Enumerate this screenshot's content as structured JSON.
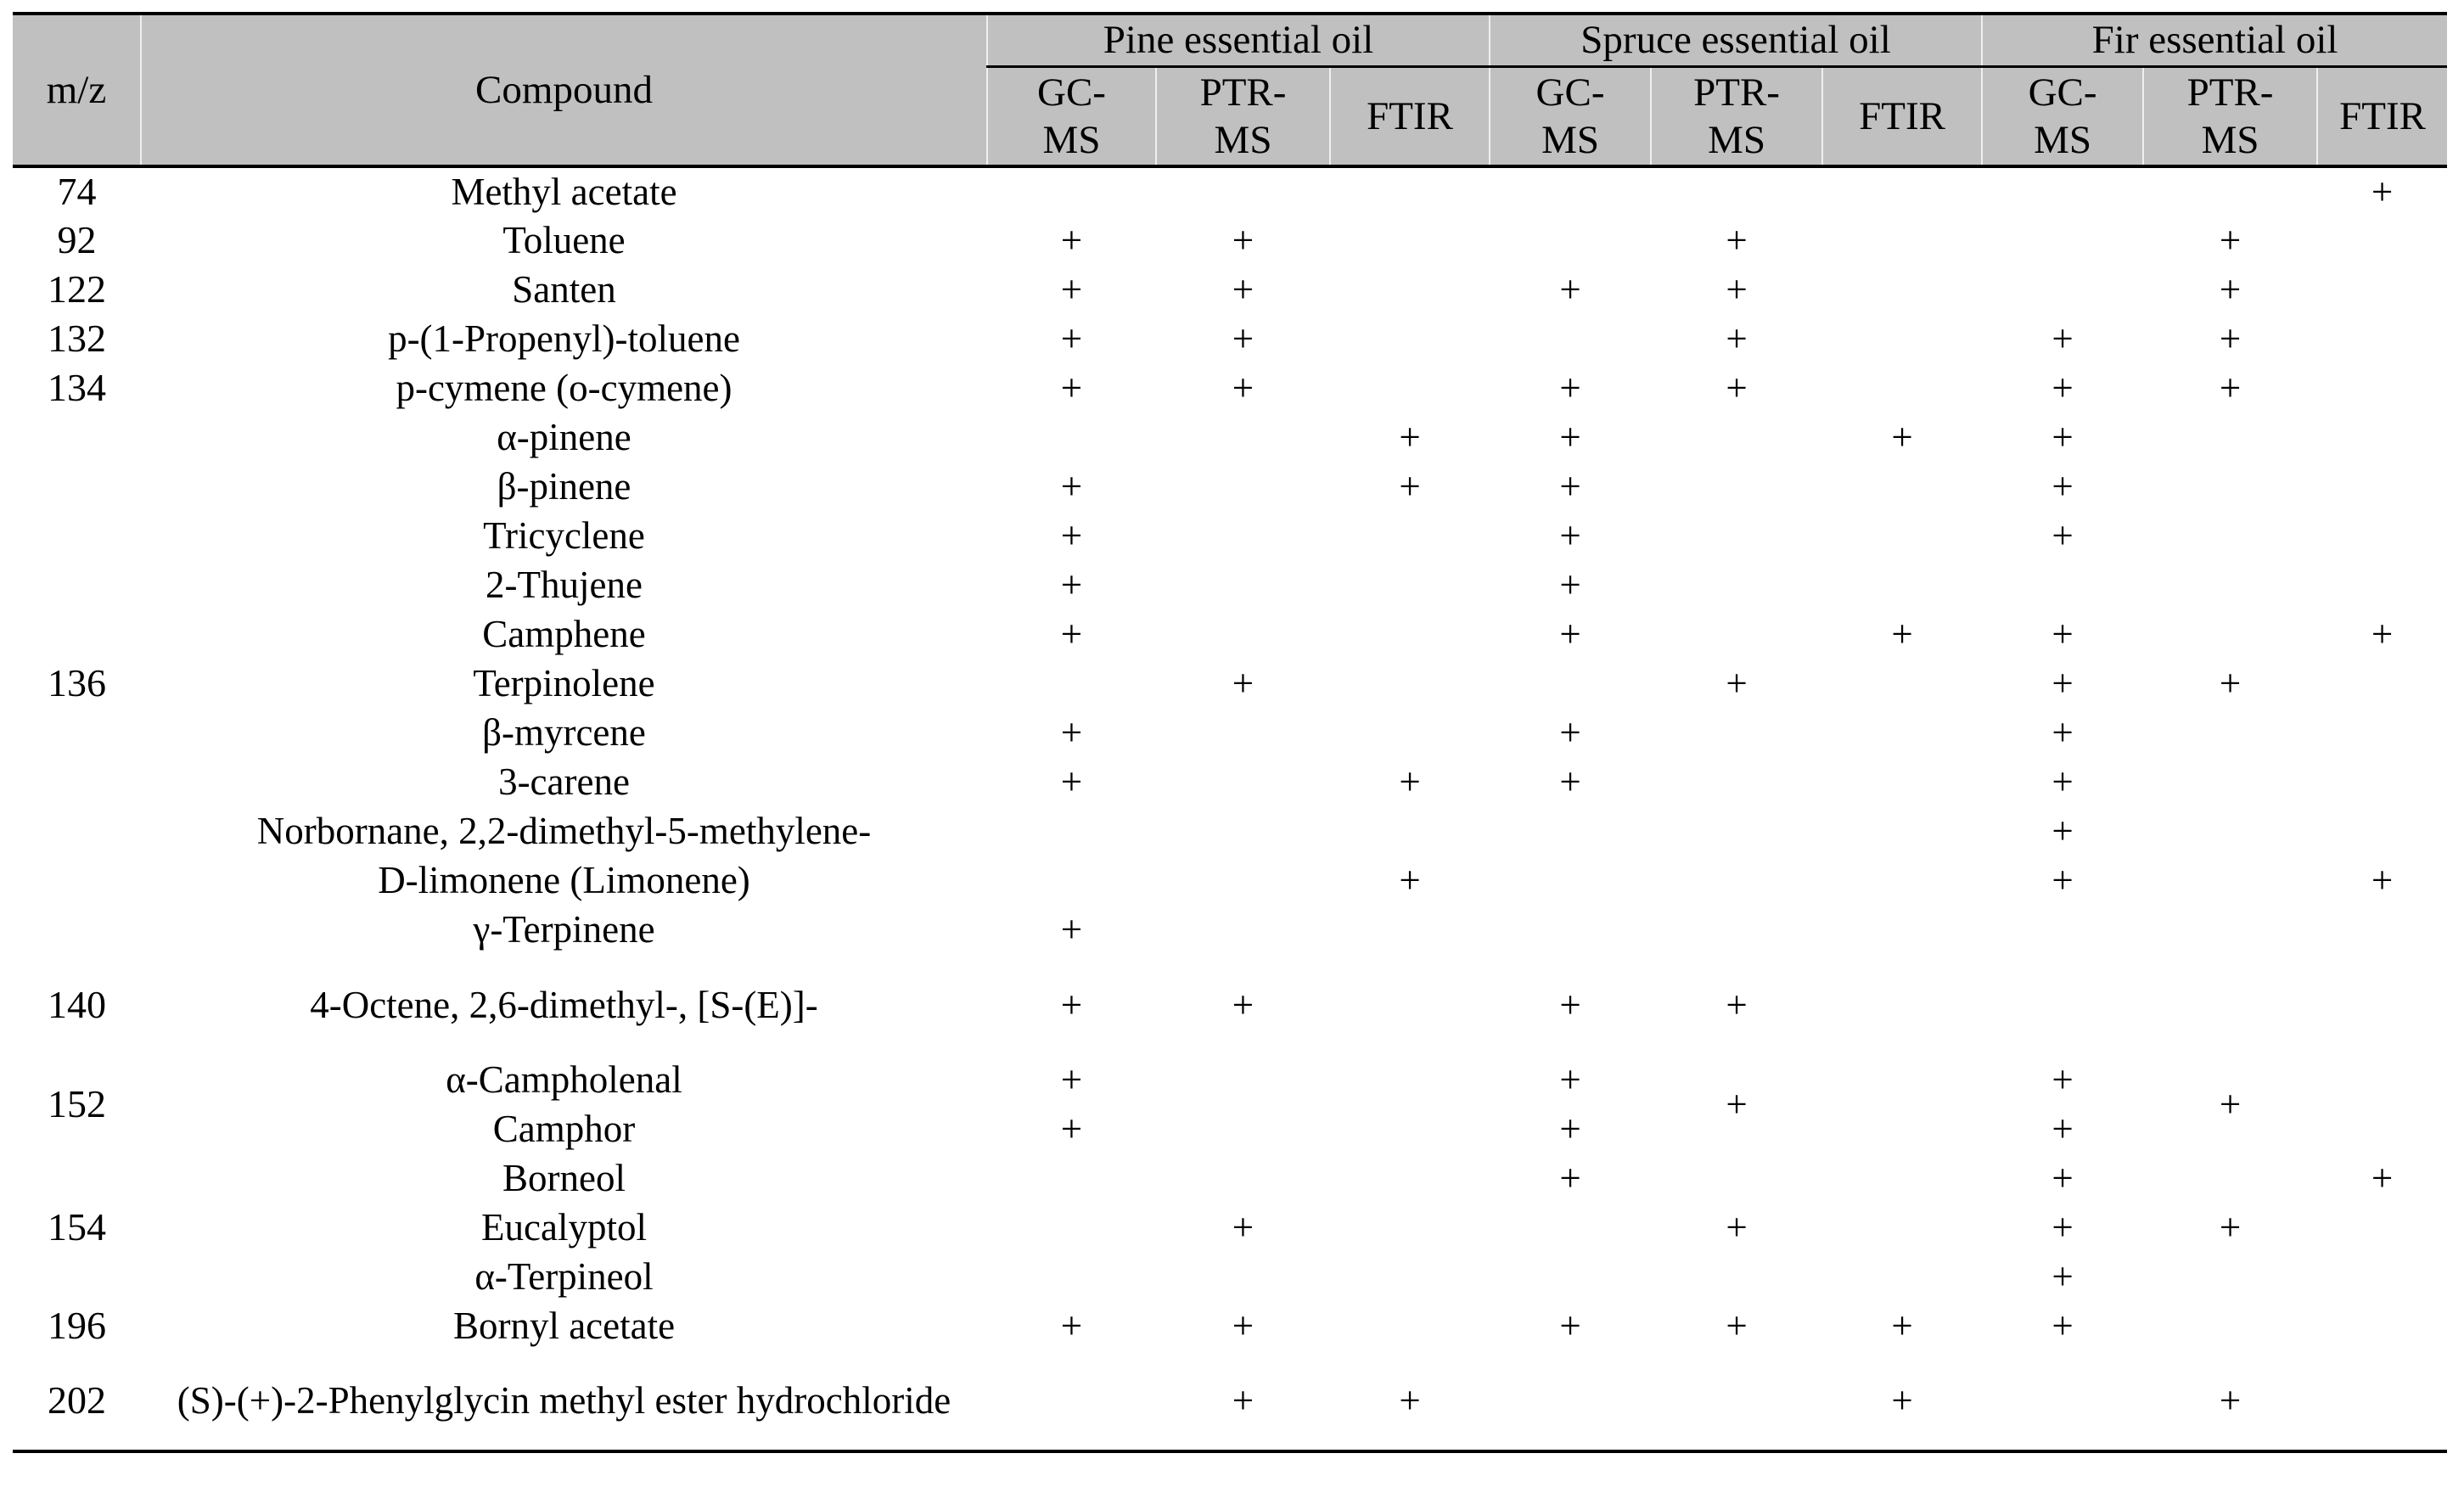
{
  "table": {
    "header": {
      "mz": "m/z",
      "compound": "Compound",
      "groups": [
        {
          "label": "Pine essential oil",
          "methods": [
            "GC-\nMS",
            "PTR-\nMS",
            "FTIR"
          ]
        },
        {
          "label": "Spruce essential oil",
          "methods": [
            "GC-\nMS",
            "PTR-\nMS",
            "FTIR"
          ]
        },
        {
          "label": "Fir essential oil",
          "methods": [
            "GC-\nMS",
            "PTR-\nMS",
            "FTIR"
          ]
        }
      ]
    },
    "plus_symbol": "+",
    "row_groups": [
      {
        "mz": "74",
        "rows": [
          {
            "compound": "Methyl acetate",
            "marks": [
              "",
              "",
              "",
              "",
              "",
              "",
              "",
              "",
              "+"
            ]
          }
        ]
      },
      {
        "mz": "92",
        "rows": [
          {
            "compound": "Toluene",
            "marks": [
              "+",
              "+",
              "",
              "",
              "+",
              "",
              "",
              "+",
              ""
            ]
          }
        ]
      },
      {
        "mz": "122",
        "rows": [
          {
            "compound": "Santen",
            "marks": [
              "+",
              "+",
              "",
              "+",
              "+",
              "",
              "",
              "+",
              ""
            ]
          }
        ]
      },
      {
        "mz": "132",
        "rows": [
          {
            "compound": "p-(1-Propenyl)-toluene",
            "marks": [
              "+",
              "+",
              "",
              "",
              "+",
              "",
              "+",
              "+",
              ""
            ]
          }
        ]
      },
      {
        "mz": "134",
        "rows": [
          {
            "compound": "p-cymene (o-cymene)",
            "marks": [
              "+",
              "+",
              "",
              "+",
              "+",
              "",
              "+",
              "+",
              ""
            ]
          }
        ]
      },
      {
        "mz": "136",
        "rows": [
          {
            "compound": "α-pinene",
            "marks": [
              "",
              "",
              "+",
              "+",
              "",
              "+",
              "+",
              "",
              ""
            ]
          },
          {
            "compound": "β-pinene",
            "marks": [
              "+",
              "",
              "+",
              "+",
              "",
              "",
              "+",
              "",
              ""
            ]
          },
          {
            "compound": "Tricyclene",
            "marks": [
              "+",
              "",
              "",
              "+",
              "",
              "",
              "+",
              "",
              ""
            ]
          },
          {
            "compound": "2-Thujene",
            "marks": [
              "+",
              "",
              "",
              "+",
              "",
              "",
              "",
              "",
              ""
            ]
          },
          {
            "compound": "Camphene",
            "marks": [
              "+",
              "",
              "",
              "+",
              "",
              "+",
              "+",
              "",
              "+"
            ]
          },
          {
            "compound": "Terpinolene",
            "marks": [
              "",
              "+",
              "",
              "",
              "+",
              "",
              "+",
              "+",
              ""
            ]
          },
          {
            "compound": "β-myrcene",
            "marks": [
              "+",
              "",
              "",
              "+",
              "",
              "",
              "+",
              "",
              ""
            ]
          },
          {
            "compound": "3-carene",
            "marks": [
              "+",
              "",
              "+",
              "+",
              "",
              "",
              "+",
              "",
              ""
            ]
          },
          {
            "compound": "Norbornane, 2,2-dimethyl-5-methylene-",
            "marks": [
              "",
              "",
              "",
              "",
              "",
              "",
              "+",
              "",
              ""
            ]
          },
          {
            "compound": "D-limonene (Limonene)",
            "marks": [
              "",
              "",
              "+",
              "",
              "",
              "",
              "+",
              "",
              "+"
            ]
          },
          {
            "compound": "γ-Terpinene",
            "marks": [
              "+",
              "",
              "",
              "",
              "",
              "",
              "",
              "",
              ""
            ]
          }
        ]
      },
      {
        "mz": "140",
        "tall": true,
        "rows": [
          {
            "compound": "4-Octene, 2,6-dimethyl-, [S-(E)]-",
            "marks": [
              "+",
              "+",
              "",
              "+",
              "+",
              "",
              "",
              "",
              ""
            ]
          }
        ]
      },
      {
        "mz": "152",
        "merged_cols": [
          {
            "col": 4,
            "mark": "+"
          },
          {
            "col": 7,
            "mark": "+"
          }
        ],
        "rows": [
          {
            "compound": "α-Campholenal",
            "marks": [
              "+",
              "",
              "",
              "+",
              "",
              "",
              "+",
              "",
              ""
            ]
          },
          {
            "compound": "Camphor",
            "marks": [
              "+",
              "",
              "",
              "+",
              "",
              "",
              "+",
              "",
              ""
            ]
          }
        ]
      },
      {
        "mz": "154",
        "rows": [
          {
            "compound": "Borneol",
            "marks": [
              "",
              "",
              "",
              "+",
              "",
              "",
              "+",
              "",
              "+"
            ]
          },
          {
            "compound": "Eucalyptol",
            "marks": [
              "",
              "+",
              "",
              "",
              "+",
              "",
              "+",
              "+",
              ""
            ]
          },
          {
            "compound": "α-Terpineol",
            "marks": [
              "",
              "",
              "",
              "",
              "",
              "",
              "+",
              "",
              ""
            ]
          }
        ]
      },
      {
        "mz": "196",
        "rows": [
          {
            "compound": "Bornyl acetate",
            "marks": [
              "+",
              "+",
              "",
              "+",
              "+",
              "+",
              "+",
              "",
              ""
            ]
          }
        ]
      },
      {
        "mz": "202",
        "tall": true,
        "rows": [
          {
            "compound": "(S)-(+)-2-Phenylglycin methyl ester hydrochloride",
            "marks": [
              "",
              "+",
              "+",
              "",
              "",
              "+",
              "",
              "+",
              ""
            ]
          }
        ]
      }
    ]
  },
  "colors": {
    "header_background": "#c0c0c0",
    "border": "#000000",
    "text": "#000000",
    "header_separator": "#ffffff",
    "page_background": "#ffffff"
  }
}
